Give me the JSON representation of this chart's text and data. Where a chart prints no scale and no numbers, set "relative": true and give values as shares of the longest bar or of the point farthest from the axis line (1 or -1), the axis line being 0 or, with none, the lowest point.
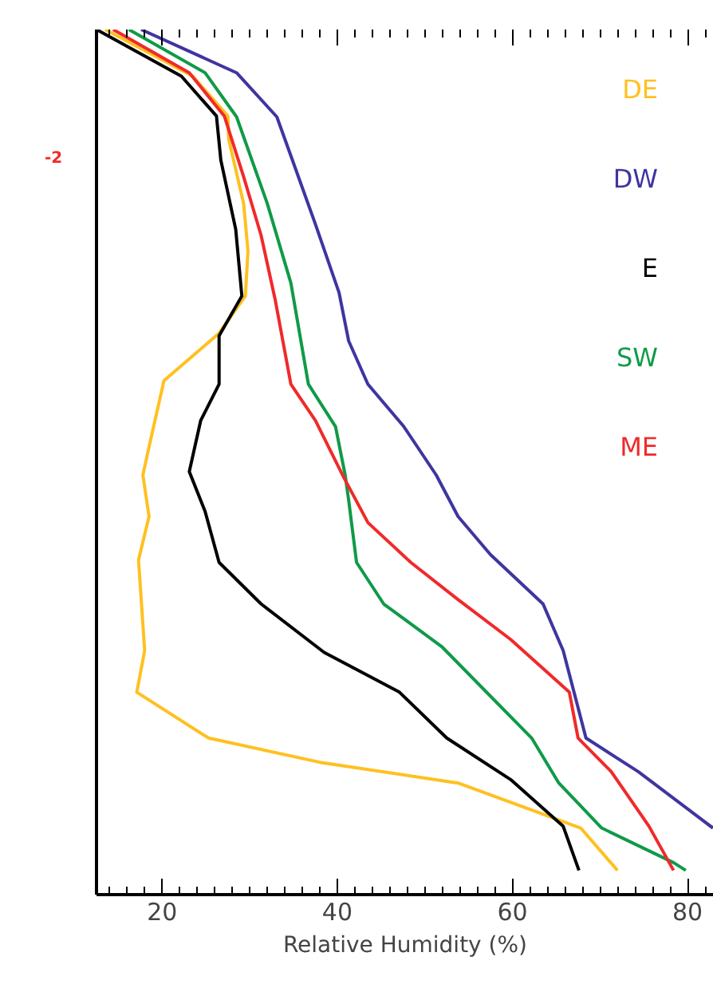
{
  "chart_data": {
    "type": "line",
    "xlabel": "Relative Humidity (%)",
    "relative": true,
    "xlim": [
      12.5,
      83
    ],
    "xticks": [
      20,
      40,
      60,
      80
    ],
    "grid": false,
    "legend": "top right",
    "marker": "none",
    "line_style": "solid",
    "annotations": [
      "-2"
    ],
    "series": [
      {
        "name": "DE",
        "color": "#ffc020",
        "x": [
          13.5,
          23.5,
          27.5,
          27.6,
          29.3,
          29.8,
          29.5,
          26.5,
          20.2,
          18.4,
          17.8,
          18.5,
          17.3,
          18,
          17.1,
          25.3,
          38,
          53.8,
          67.8,
          72
        ],
        "values": [
          1,
          0.946,
          0.9,
          0.873,
          0.799,
          0.744,
          0.692,
          0.649,
          0.594,
          0.513,
          0.485,
          0.437,
          0.387,
          0.282,
          0.234,
          0.181,
          0.153,
          0.129,
          0.077,
          0.028
        ]
      },
      {
        "name": "DW",
        "color": "#3f35a0",
        "x": [
          17.6,
          28.5,
          33.1,
          34.7,
          37.5,
          40.2,
          41.3,
          43.5,
          47.6,
          51.3,
          53.8,
          57.5,
          63.5,
          65.8,
          68.4,
          74.4,
          82.9
        ],
        "values": [
          1,
          0.95,
          0.899,
          0.854,
          0.775,
          0.696,
          0.64,
          0.59,
          0.541,
          0.485,
          0.437,
          0.393,
          0.336,
          0.282,
          0.181,
          0.142,
          0.077
        ]
      },
      {
        "name": "E",
        "color": "#000000",
        "x": [
          12.5,
          22.2,
          26.2,
          26.7,
          28.4,
          29.1,
          26.5,
          26.5,
          24.4,
          23.1,
          24.9,
          26.5,
          31.3,
          38.5,
          47.1,
          52.5,
          59.8,
          65.8,
          67.6
        ],
        "values": [
          1,
          0.946,
          0.9,
          0.849,
          0.769,
          0.692,
          0.646,
          0.59,
          0.548,
          0.489,
          0.443,
          0.384,
          0.336,
          0.28,
          0.234,
          0.181,
          0.133,
          0.079,
          0.028
        ]
      },
      {
        "name": "SW",
        "color": "#109a48",
        "x": [
          16.2,
          24.9,
          28.5,
          32,
          34.7,
          36.7,
          39.8,
          40.9,
          41.3,
          42.2,
          45.3,
          52,
          62.2,
          65.3,
          70.2,
          78.4,
          79.8
        ],
        "values": [
          1,
          0.95,
          0.899,
          0.799,
          0.707,
          0.59,
          0.541,
          0.485,
          0.456,
          0.384,
          0.336,
          0.286,
          0.181,
          0.129,
          0.077,
          0.037,
          0.028
        ]
      },
      {
        "name": "ME",
        "color": "#f02a2a",
        "x": [
          14.4,
          23.1,
          27.1,
          29.3,
          31.3,
          32.9,
          34.7,
          37.5,
          40.7,
          43.5,
          48.4,
          53.8,
          59.8,
          66.5,
          67.5,
          71.3,
          75.6,
          78.4
        ],
        "values": [
          1,
          0.95,
          0.9,
          0.83,
          0.762,
          0.688,
          0.59,
          0.548,
          0.483,
          0.43,
          0.384,
          0.341,
          0.295,
          0.234,
          0.181,
          0.142,
          0.079,
          0.028
        ]
      }
    ]
  }
}
